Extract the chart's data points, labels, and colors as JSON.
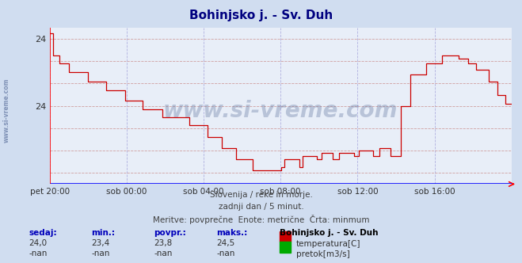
{
  "title": "Bohinjsko j. - Sv. Duh",
  "bg_color": "#d0ddf0",
  "plot_bg_color": "#e8eef8",
  "x_labels": [
    "pet 20:00",
    "sob 00:00",
    "sob 04:00",
    "sob 08:00",
    "sob 12:00",
    "sob 16:00"
  ],
  "x_ticks_norm": [
    0.0,
    0.1667,
    0.3333,
    0.5,
    0.6667,
    0.8333
  ],
  "y_ticks": [
    23.4,
    23.6,
    23.8,
    24.0,
    24.2,
    24.4,
    24.6
  ],
  "y_tick_labels": [
    "",
    "",
    "",
    "24",
    "",
    "",
    "24"
  ],
  "ylim": [
    23.3,
    24.7
  ],
  "temp_color": "#cc0000",
  "subtitle1": "Slovenija / reke in morje.",
  "subtitle2": "zadnji dan / 5 minut.",
  "subtitle3": "Meritve: povprečne  Enote: metrične  Črta: minmum",
  "legend_station": "Bohinjsko j. - Sv. Duh",
  "legend_temp_label": "temperatura[C]",
  "legend_flow_label": "pretok[m3/s]",
  "table_headers": [
    "sedaj:",
    "min.:",
    "povpr.:",
    "maks.:"
  ],
  "table_temp": [
    "24,0",
    "23,4",
    "23,8",
    "24,5"
  ],
  "table_flow": [
    "-nan",
    "-nan",
    "-nan",
    "-nan"
  ],
  "watermark": "www.si-vreme.com",
  "watermark_color": "#4a6090",
  "watermark_alpha": 0.3,
  "left_watermark": "www.si-vreme.com"
}
